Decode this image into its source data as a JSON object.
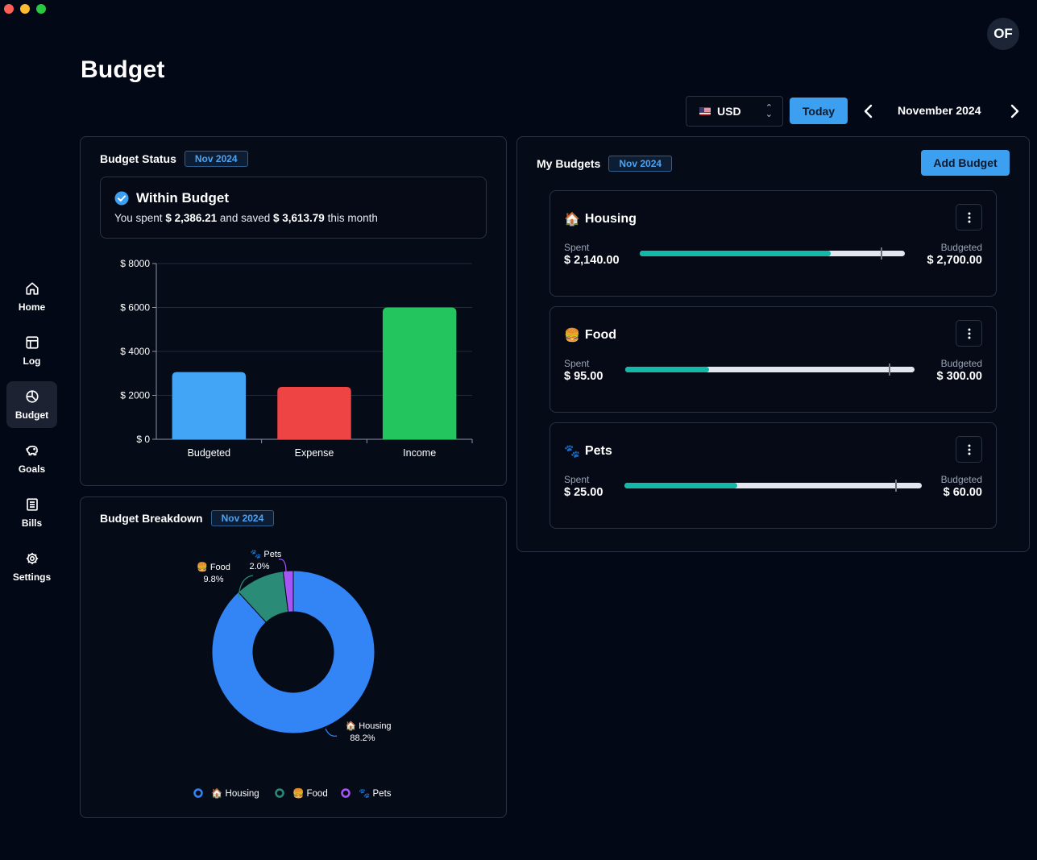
{
  "page": {
    "title": "Budget",
    "avatar_initials": "OF"
  },
  "sidebar": {
    "items": [
      {
        "label": "Home",
        "icon": "home-icon",
        "active": false
      },
      {
        "label": "Log",
        "icon": "table-icon",
        "active": false
      },
      {
        "label": "Budget",
        "icon": "pie-chart-icon",
        "active": true
      },
      {
        "label": "Goals",
        "icon": "piggy-bank-icon",
        "active": false
      },
      {
        "label": "Bills",
        "icon": "list-icon",
        "active": false
      },
      {
        "label": "Settings",
        "icon": "gear-icon",
        "active": false
      }
    ]
  },
  "toolbar": {
    "currency": "USD",
    "today_label": "Today",
    "month_label": "November 2024"
  },
  "budget_status": {
    "title": "Budget Status",
    "badge": "Nov 2024",
    "status_title": "Within Budget",
    "text_prefix": "You spent",
    "spent": "$ 2,386.21",
    "text_mid": "and saved",
    "saved": "$ 3,613.79",
    "text_suffix": "this month",
    "chart_data": {
      "type": "bar",
      "categories": [
        "Budgeted",
        "Expense",
        "Income"
      ],
      "values": [
        3060,
        2386.21,
        6000
      ],
      "colors": [
        "#42a5f5",
        "#ef4444",
        "#22c55e"
      ],
      "ylim": [
        0,
        8000
      ],
      "yticks": [
        0,
        2000,
        4000,
        6000,
        8000
      ],
      "ytick_labels": [
        "$ 0",
        "$ 2000",
        "$ 4000",
        "$ 6000",
        "$ 8000"
      ],
      "grid": true
    }
  },
  "budget_breakdown": {
    "title": "Budget Breakdown",
    "badge": "Nov 2024",
    "chart_data": {
      "type": "pie",
      "donut": true,
      "labels": [
        "🏠 Housing",
        "🍔 Food",
        "🐾 Pets"
      ],
      "values": [
        88.2,
        9.8,
        2.0
      ],
      "value_labels": [
        "88.2%",
        "9.8%",
        "2.0%"
      ],
      "colors": [
        "#3385f6",
        "#2a8c77",
        "#a855f7"
      ],
      "legend": "bottom"
    }
  },
  "my_budgets": {
    "title": "My Budgets",
    "badge": "Nov 2024",
    "add_label": "Add Budget",
    "spent_label": "Spent",
    "budgeted_label": "Budgeted",
    "items": [
      {
        "emoji": "🏠",
        "name": "Housing",
        "spent": "$ 2,140.00",
        "budgeted": "$ 2,700.00",
        "progress": 0.72,
        "marker": 0.91
      },
      {
        "emoji": "🍔",
        "name": "Food",
        "spent": "$ 95.00",
        "budgeted": "$ 300.00",
        "progress": 0.29,
        "marker": 0.91
      },
      {
        "emoji": "🐾",
        "name": "Pets",
        "spent": "$ 25.00",
        "budgeted": "$ 60.00",
        "progress": 0.38,
        "marker": 0.91
      }
    ]
  }
}
